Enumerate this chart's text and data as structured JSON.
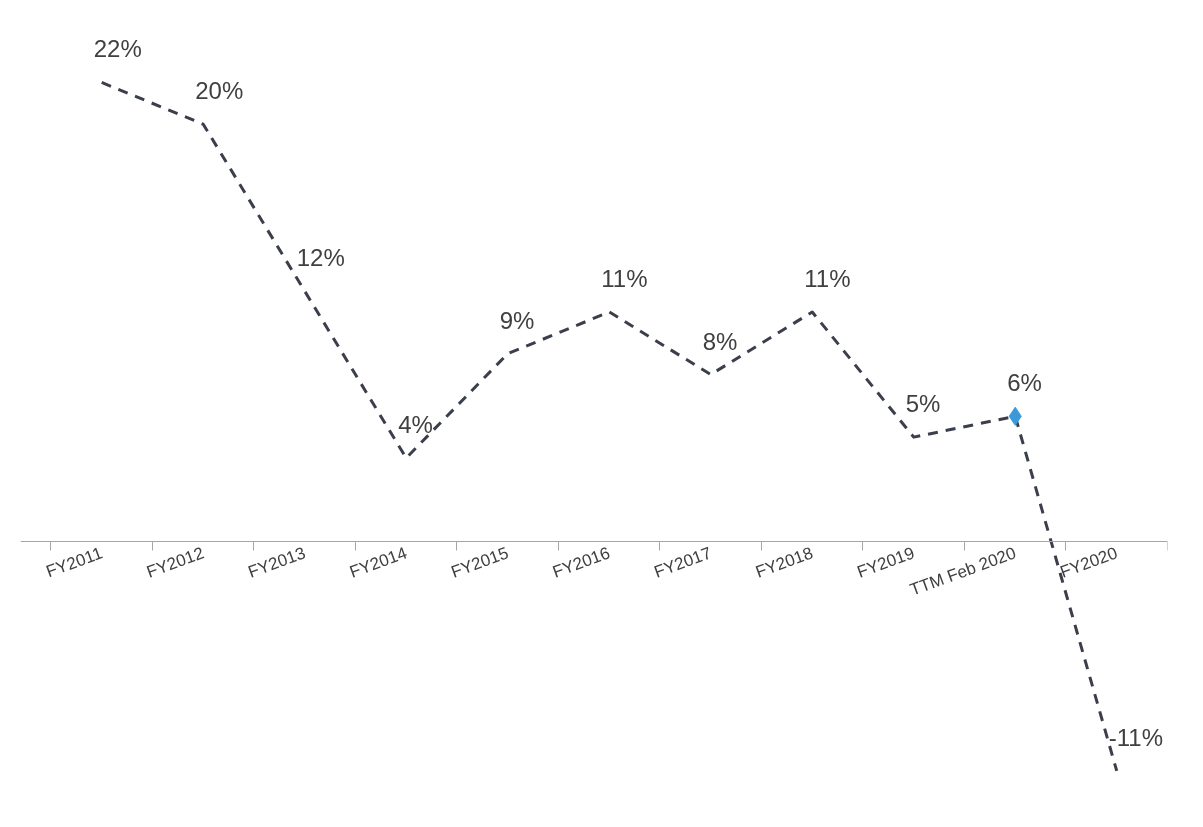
{
  "chart_data": {
    "type": "line",
    "categories": [
      "FY2011",
      "FY2012",
      "FY2013",
      "FY2014",
      "FY2015",
      "FY2016",
      "FY2017",
      "FY2018",
      "FY2019",
      "TTM Feb 2020",
      "FY2020"
    ],
    "series": [
      {
        "color": "#3b3f4c",
        "line_style": "dashed",
        "marker": "none",
        "values": [
          22,
          20,
          12,
          4,
          9,
          11,
          8,
          11,
          5,
          6,
          -11
        ],
        "value_labels": [
          "22%",
          "20%",
          "12%",
          "4%",
          "9%",
          "11%",
          "8%",
          "11%",
          "5%",
          "6%",
          "-11%"
        ]
      },
      {
        "type": "scatter",
        "color": "#3a9ad9",
        "marker": "diamond",
        "x": [
          "TTM Feb 2020"
        ],
        "values": [
          6
        ]
      }
    ],
    "grid": false
  }
}
